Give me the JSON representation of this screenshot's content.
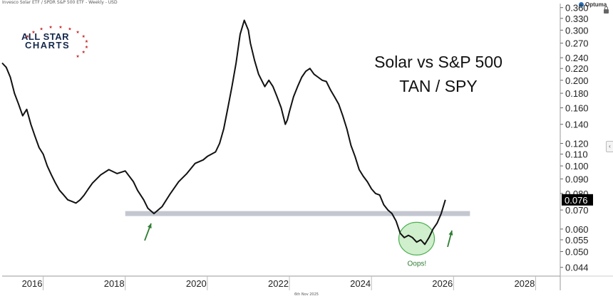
{
  "header": {
    "symbol_text": "Invesco Solar ETF / SPDR S&P 500 ETF - Weekly - USD",
    "brand": "Optuma"
  },
  "footer": {
    "date": "6th Nov 2025"
  },
  "logo": {
    "line1": "ALL STAR",
    "line2": "CHARTS"
  },
  "annotation": {
    "label": "Oops!"
  },
  "chart_data": {
    "type": "line",
    "title": "Solar vs S&P 500",
    "subtitle": "TAN / SPY",
    "y_scale": "log",
    "ylim": [
      0.041,
      0.372
    ],
    "xlim": [
      2015.0,
      2028.6
    ],
    "x_ticks": [
      "2016",
      "2018",
      "2020",
      "2022",
      "2024",
      "2026",
      "2028"
    ],
    "x_tick_values": [
      2016,
      2018,
      2020,
      2022,
      2024,
      2026,
      2028
    ],
    "y_ticks": [
      "0.044",
      "0.050",
      "0.055",
      "0.060",
      "0.070",
      "0.080",
      "0.090",
      "0.100",
      "0.110",
      "0.120",
      "0.140",
      "0.160",
      "0.180",
      "0.200",
      "0.220",
      "0.240",
      "0.270",
      "0.300",
      "0.330",
      "0.360"
    ],
    "y_tick_values": [
      0.044,
      0.05,
      0.055,
      0.06,
      0.07,
      0.08,
      0.09,
      0.1,
      0.11,
      0.12,
      0.14,
      0.16,
      0.18,
      0.2,
      0.22,
      0.24,
      0.27,
      0.3,
      0.33,
      0.36
    ],
    "last_value_label": "0.076",
    "support_level": 0.068,
    "support_range": [
      2018.0,
      2026.4
    ],
    "colors": {
      "line": "#111111",
      "support": "#c4c7d0",
      "arrow": "#2e7d32",
      "circle_fill": "#c8ecc4",
      "circle_stroke": "#4caf50",
      "label_bg": "#000000",
      "label_text": "#ffffff"
    },
    "series": [
      {
        "x": [
          2015.0,
          2015.1,
          2015.2,
          2015.3,
          2015.4,
          2015.5,
          2015.6,
          2015.7,
          2015.8,
          2015.9,
          2016.0,
          2016.1,
          2016.2,
          2016.3,
          2016.4,
          2016.5,
          2016.6,
          2016.7,
          2016.8,
          2016.9,
          2017.0,
          2017.1,
          2017.2,
          2017.4,
          2017.6,
          2017.8,
          2018.0,
          2018.2,
          2018.3,
          2018.45,
          2018.55,
          2018.7,
          2018.9,
          2019.1,
          2019.3,
          2019.5,
          2019.7,
          2019.9,
          2020.0,
          2020.2,
          2020.3,
          2020.4,
          2020.5,
          2020.6,
          2020.7,
          2020.8,
          2020.9,
          2021.0,
          2021.05,
          2021.15,
          2021.25,
          2021.4,
          2021.5,
          2021.6,
          2021.7,
          2021.8,
          2021.9,
          2021.95,
          2022.0,
          2022.1,
          2022.2,
          2022.3,
          2022.4,
          2022.5,
          2022.6,
          2022.7,
          2022.8,
          2022.9,
          2023.0,
          2023.1,
          2023.2,
          2023.3,
          2023.4,
          2023.5,
          2023.6,
          2023.7,
          2023.8,
          2023.9,
          2024.0,
          2024.1,
          2024.2,
          2024.3,
          2024.4,
          2024.5,
          2024.6,
          2024.7,
          2024.8,
          2024.9,
          2025.0,
          2025.1,
          2025.2,
          2025.3,
          2025.4,
          2025.5,
          2025.6,
          2025.7,
          2025.8
        ],
        "values": [
          0.23,
          0.222,
          0.205,
          0.18,
          0.165,
          0.15,
          0.158,
          0.14,
          0.127,
          0.116,
          0.11,
          0.1,
          0.093,
          0.087,
          0.082,
          0.079,
          0.076,
          0.075,
          0.074,
          0.076,
          0.079,
          0.083,
          0.087,
          0.093,
          0.097,
          0.094,
          0.096,
          0.088,
          0.082,
          0.076,
          0.071,
          0.068,
          0.072,
          0.08,
          0.088,
          0.094,
          0.102,
          0.105,
          0.108,
          0.112,
          0.12,
          0.135,
          0.16,
          0.19,
          0.23,
          0.29,
          0.325,
          0.3,
          0.27,
          0.235,
          0.21,
          0.19,
          0.2,
          0.19,
          0.175,
          0.16,
          0.14,
          0.145,
          0.155,
          0.175,
          0.19,
          0.205,
          0.215,
          0.22,
          0.21,
          0.205,
          0.2,
          0.198,
          0.185,
          0.175,
          0.165,
          0.15,
          0.135,
          0.118,
          0.108,
          0.097,
          0.092,
          0.088,
          0.083,
          0.08,
          0.079,
          0.073,
          0.07,
          0.068,
          0.064,
          0.058,
          0.056,
          0.057,
          0.056,
          0.054,
          0.055,
          0.053,
          0.056,
          0.06,
          0.063,
          0.068,
          0.076
        ]
      }
    ]
  }
}
